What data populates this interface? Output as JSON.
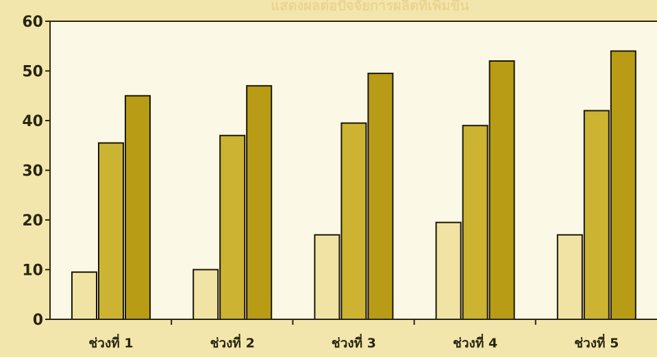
{
  "chart_data": {
    "type": "bar",
    "title": "แสดงผลต่อปัจจัยการผลิตที่เพิ่มขึ้น",
    "categories": [
      "ช่วงที่ 1",
      "ช่วงที่ 2",
      "ช่วงที่ 3",
      "ช่วงที่ 4",
      "ช่วงที่ 5"
    ],
    "series": [
      {
        "values": [
          9.5,
          10,
          17,
          19.5,
          17
        ],
        "color": "#f1e3a4"
      },
      {
        "values": [
          35.5,
          37,
          39.5,
          39,
          42
        ],
        "color": "#cdb332"
      },
      {
        "values": [
          45,
          47,
          49.5,
          52,
          54
        ],
        "color": "#b99c15"
      }
    ],
    "yticks": [
      0,
      10,
      20,
      30,
      40,
      50,
      60
    ],
    "ylim": [
      0,
      60
    ],
    "xlabel": "",
    "ylabel": "",
    "grid": false,
    "plot_background": "#fbf8e6",
    "page_background": "#f3e6ad"
  }
}
